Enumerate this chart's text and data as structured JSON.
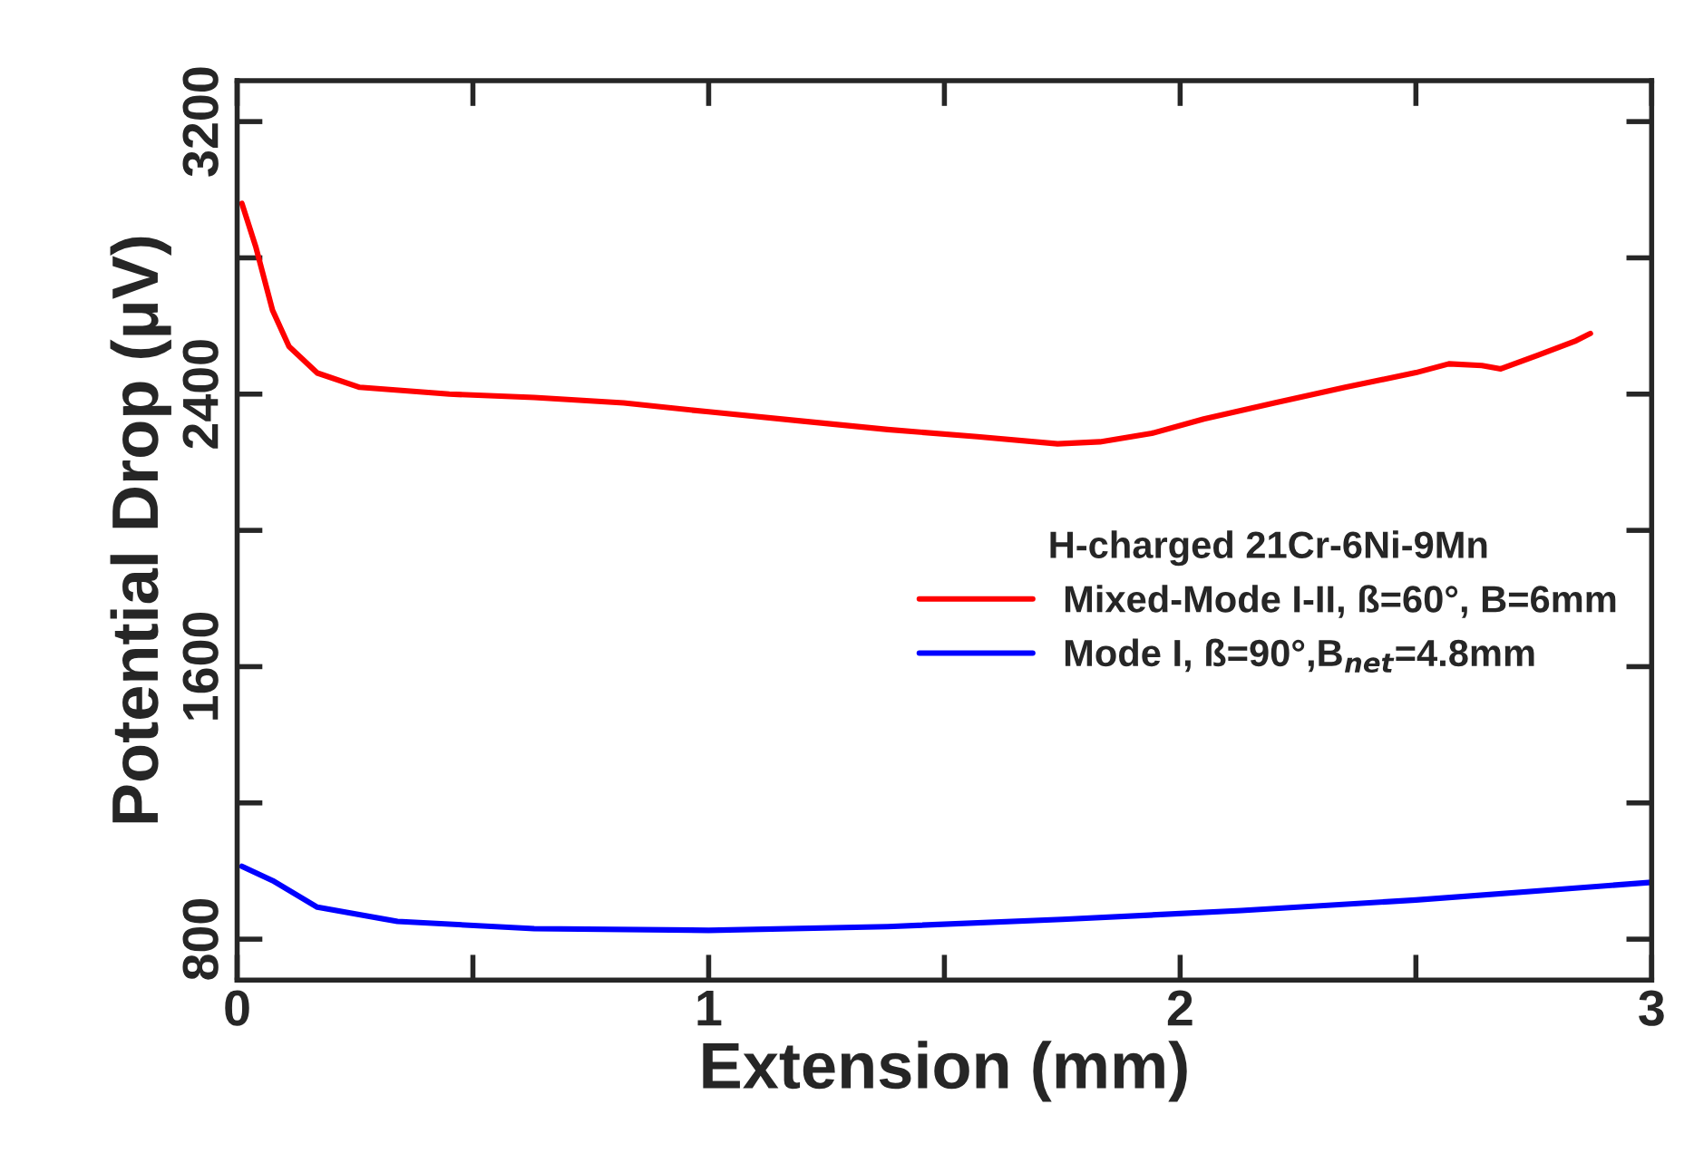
{
  "chart_data": {
    "type": "line",
    "xlabel": "Extension (mm)",
    "ylabel": "Potential Drop (μV)",
    "legend_title": "H-charged 21Cr-6Ni-9Mn",
    "xlim": [
      0,
      3
    ],
    "ylim": [
      680,
      3320
    ],
    "xticks": [
      0,
      {
        "value": 0.5,
        "label": null
      },
      1,
      {
        "value": 1.5,
        "label": null
      },
      2,
      {
        "value": 2.5,
        "label": null
      },
      3
    ],
    "yticks": [
      800,
      {
        "value": 1200,
        "label": null
      },
      1600,
      {
        "value": 2000,
        "label": null
      },
      2400,
      {
        "value": 2800,
        "label": null
      },
      3200
    ],
    "grid": false,
    "legend": "right",
    "line_style": "solid",
    "marker": "none",
    "series": [
      {
        "name": "Mixed-Mode I-II, ß=60°, B=6mm",
        "color": "#ff0000",
        "x": [
          0.01,
          0.04,
          0.075,
          0.11,
          0.17,
          0.26,
          0.45,
          0.63,
          0.82,
          1.0,
          1.19,
          1.38,
          1.57,
          1.74,
          1.83,
          1.94,
          2.05,
          2.2,
          2.35,
          2.5,
          2.57,
          2.64,
          2.68,
          2.76,
          2.84,
          2.87
        ],
        "values": [
          2960,
          2830,
          2646,
          2540,
          2462,
          2420,
          2400,
          2390,
          2374,
          2348,
          2322,
          2296,
          2275,
          2254,
          2260,
          2285,
          2327,
          2374,
          2420,
          2463,
          2489,
          2484,
          2474,
          2515,
          2557,
          2578
        ]
      },
      {
        "name": "Mode I, ß=90°,B$_{net}$=4.8mm",
        "color": "#0000ff",
        "x": [
          0.01,
          0.075,
          0.17,
          0.34,
          0.63,
          1.0,
          1.38,
          1.75,
          2.13,
          2.5,
          2.8,
          3.0
        ],
        "values": [
          1014,
          972,
          894,
          852,
          831,
          826,
          837,
          858,
          884,
          915,
          946,
          967
        ]
      }
    ]
  }
}
